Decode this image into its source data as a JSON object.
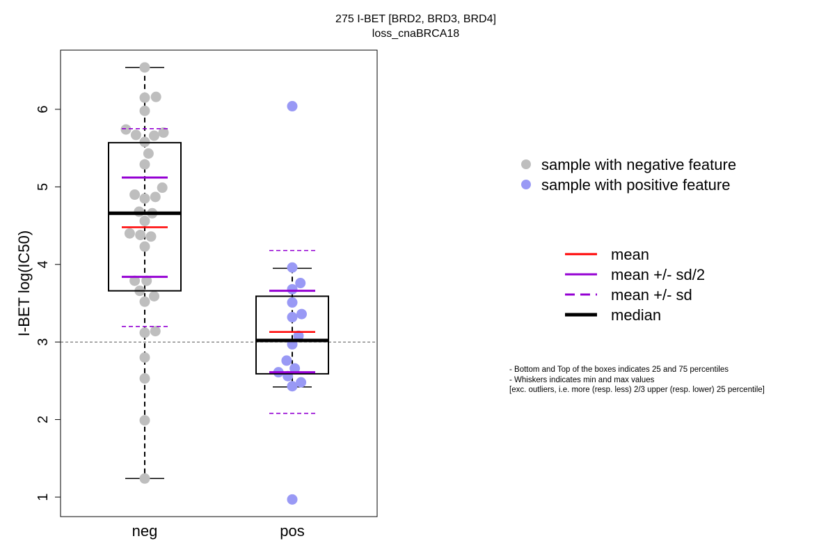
{
  "chart_data": {
    "type": "box",
    "title": "275 I-BET [BRD2, BRD3, BRD4]",
    "subtitle": "loss_cnaBRCA18",
    "ylabel": "I-BET log(IC50)",
    "xlabel": "",
    "ylim": [
      0.75,
      6.75
    ],
    "yticks": [
      1,
      2,
      3,
      4,
      5,
      6
    ],
    "reference_line_y": 3,
    "categories": [
      "neg",
      "pos"
    ],
    "groups": [
      {
        "name": "neg",
        "color": "#bebebe",
        "stats": {
          "whisker_low": 1.24,
          "q1": 3.66,
          "median": 4.66,
          "q3": 5.57,
          "whisker_high": 6.54,
          "mean": 4.48,
          "mean_minus_half_sd": 3.84,
          "mean_plus_half_sd": 5.12,
          "mean_minus_sd": 3.2,
          "mean_plus_sd": 5.75
        },
        "points": [
          {
            "dx": 0.0,
            "y": 6.54
          },
          {
            "dx": 0.0,
            "y": 6.15
          },
          {
            "dx": 0.18,
            "y": 6.16
          },
          {
            "dx": 0.0,
            "y": 5.98
          },
          {
            "dx": -0.3,
            "y": 5.74
          },
          {
            "dx": -0.14,
            "y": 5.67
          },
          {
            "dx": 0.15,
            "y": 5.66
          },
          {
            "dx": 0.3,
            "y": 5.7
          },
          {
            "dx": 0.0,
            "y": 5.58
          },
          {
            "dx": 0.06,
            "y": 5.43
          },
          {
            "dx": 0.0,
            "y": 5.29
          },
          {
            "dx": 0.28,
            "y": 4.99
          },
          {
            "dx": -0.16,
            "y": 4.9
          },
          {
            "dx": 0.0,
            "y": 4.85
          },
          {
            "dx": 0.17,
            "y": 4.87
          },
          {
            "dx": -0.09,
            "y": 4.68
          },
          {
            "dx": 0.12,
            "y": 4.66
          },
          {
            "dx": 0.0,
            "y": 4.56
          },
          {
            "dx": -0.24,
            "y": 4.4
          },
          {
            "dx": -0.07,
            "y": 4.38
          },
          {
            "dx": 0.1,
            "y": 4.36
          },
          {
            "dx": 0.0,
            "y": 4.23
          },
          {
            "dx": -0.16,
            "y": 3.79
          },
          {
            "dx": 0.03,
            "y": 3.79
          },
          {
            "dx": -0.08,
            "y": 3.66
          },
          {
            "dx": 0.15,
            "y": 3.59
          },
          {
            "dx": 0.0,
            "y": 3.52
          },
          {
            "dx": 0.0,
            "y": 3.12
          },
          {
            "dx": 0.17,
            "y": 3.14
          },
          {
            "dx": 0.0,
            "y": 2.8
          },
          {
            "dx": 0.0,
            "y": 2.53
          },
          {
            "dx": 0.0,
            "y": 1.99
          },
          {
            "dx": 0.0,
            "y": 1.24
          }
        ]
      },
      {
        "name": "pos",
        "color": "#9999f5",
        "stats": {
          "whisker_low": 2.42,
          "q1": 2.59,
          "median": 3.02,
          "q3": 3.59,
          "whisker_high": 3.95,
          "mean": 3.13,
          "mean_minus_half_sd": 2.61,
          "mean_plus_half_sd": 3.66,
          "mean_minus_sd": 2.08,
          "mean_plus_sd": 4.18
        },
        "points": [
          {
            "dx": 0.0,
            "y": 6.04
          },
          {
            "dx": 0.0,
            "y": 3.96
          },
          {
            "dx": 0.13,
            "y": 3.76
          },
          {
            "dx": 0.0,
            "y": 3.68
          },
          {
            "dx": 0.0,
            "y": 3.51
          },
          {
            "dx": 0.15,
            "y": 3.36
          },
          {
            "dx": 0.0,
            "y": 3.32
          },
          {
            "dx": 0.1,
            "y": 3.08
          },
          {
            "dx": 0.0,
            "y": 2.97
          },
          {
            "dx": -0.09,
            "y": 2.76
          },
          {
            "dx": 0.04,
            "y": 2.66
          },
          {
            "dx": -0.22,
            "y": 2.61
          },
          {
            "dx": -0.07,
            "y": 2.56
          },
          {
            "dx": 0.14,
            "y": 2.48
          },
          {
            "dx": 0.0,
            "y": 2.43
          },
          {
            "dx": 0.0,
            "y": 0.97
          }
        ]
      }
    ],
    "legend_points": [
      {
        "label": "sample with negative feature",
        "color": "#bebebe"
      },
      {
        "label": "sample with positive feature",
        "color": "#9999f5"
      }
    ],
    "legend_lines": [
      {
        "label": "mean",
        "color": "#ff0000",
        "style": "solid",
        "weight": "normal"
      },
      {
        "label": "mean +/- sd/2",
        "color": "#9400d3",
        "style": "solid",
        "weight": "normal"
      },
      {
        "label": "mean +/- sd",
        "color": "#9400d3",
        "style": "dashed",
        "weight": "normal"
      },
      {
        "label": "median",
        "color": "#000000",
        "style": "solid",
        "weight": "bold"
      }
    ],
    "colors": {
      "mean": "#ff0000",
      "sd": "#9400d3",
      "median": "#000000",
      "reference": "#555555"
    }
  },
  "notes": [
    "- Bottom and Top of the boxes indicates 25 and 75 percentiles",
    "- Whiskers indicates min and max values",
    "[exc. outliers, i.e. more (resp. less) 2/3 upper (resp. lower) 25 percentile]"
  ]
}
